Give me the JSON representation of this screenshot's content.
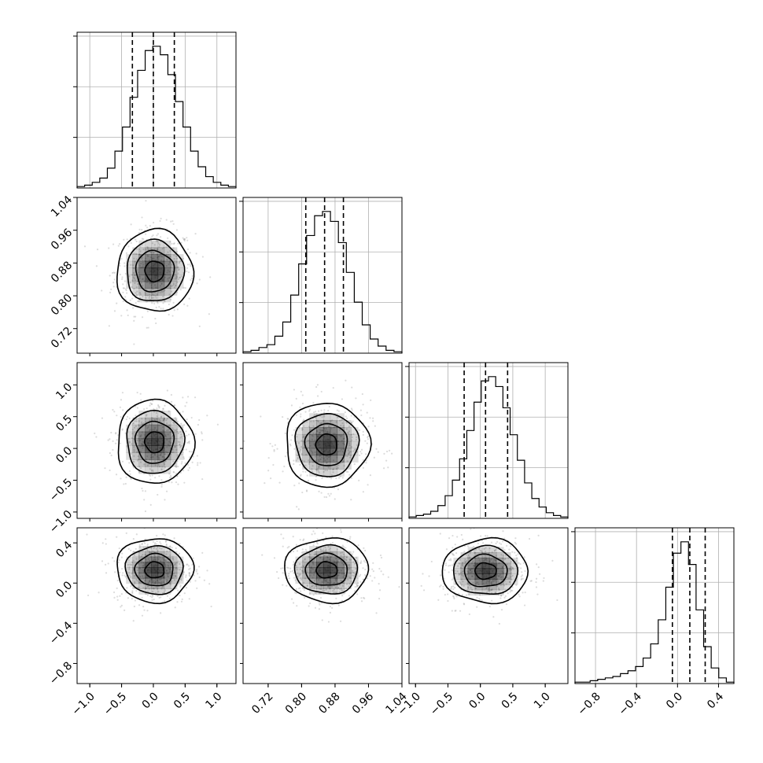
{
  "chart_data": {
    "type": "corner",
    "grid": true,
    "colors": {
      "line": "#000000",
      "grid": "#b0b0b0",
      "scatter": "#9a9a9a",
      "density": "#000000"
    },
    "params": [
      {
        "range": [
          -1.2,
          1.3
        ],
        "ticks": [
          -1.0,
          -0.5,
          0.0,
          0.5,
          1.0
        ],
        "tick_labels": [
          "−1.0",
          "−0.5",
          "0.0",
          "0.5",
          "1.0"
        ],
        "mean": 0.0,
        "sd": 0.3,
        "quantiles": [
          -0.33,
          0.0,
          0.33
        ]
      },
      {
        "range": [
          0.66,
          1.04
        ],
        "ticks": [
          0.72,
          0.8,
          0.88,
          0.96,
          1.04
        ],
        "tick_labels": [
          "0.72",
          "0.80",
          "0.88",
          "0.96",
          "1.04"
        ],
        "mean": 0.86,
        "sd": 0.05,
        "quantiles": [
          0.81,
          0.855,
          0.9
        ]
      },
      {
        "range": [
          -1.1,
          1.35
        ],
        "ticks": [
          -1.0,
          -0.5,
          0.0,
          0.5,
          1.0
        ],
        "tick_labels": [
          "−1.0",
          "−0.5",
          "0.0",
          "0.5",
          "1.0"
        ],
        "mean": 0.08,
        "sd": 0.33,
        "quantiles": [
          -0.25,
          0.08,
          0.42
        ]
      },
      {
        "range": [
          -1.0,
          0.55
        ],
        "ticks": [
          -0.8,
          -0.4,
          0.0,
          0.4
        ],
        "tick_labels": [
          "−0.8",
          "−0.4",
          "0.0",
          "0.4"
        ],
        "mean": 0.12,
        "sd": 0.16,
        "quantiles": [
          -0.05,
          0.12,
          0.27
        ]
      }
    ],
    "histograms": [
      {
        "param": 0,
        "counts": [
          1,
          2,
          4,
          7,
          14,
          26,
          43,
          64,
          83,
          97,
          100,
          94,
          80,
          61,
          43,
          26,
          15,
          8,
          4,
          2,
          1
        ]
      },
      {
        "param": 1,
        "counts": [
          1,
          2,
          4,
          6,
          12,
          22,
          41,
          63,
          83,
          97,
          100,
          93,
          78,
          57,
          36,
          20,
          10,
          5,
          2,
          1
        ]
      },
      {
        "param": 2,
        "counts": [
          1,
          2,
          3,
          5,
          9,
          16,
          27,
          42,
          62,
          82,
          97,
          100,
          93,
          78,
          59,
          41,
          25,
          14,
          8,
          4,
          2,
          1
        ]
      },
      {
        "param": 3,
        "counts": [
          1,
          1,
          2,
          3,
          4,
          5,
          7,
          9,
          12,
          18,
          28,
          45,
          68,
          92,
          100,
          84,
          52,
          26,
          11,
          4,
          1
        ]
      }
    ],
    "pairs": [
      {
        "x_param": 0,
        "y_param": 1,
        "center": [
          0.02,
          0.86
        ]
      },
      {
        "x_param": 0,
        "y_param": 2,
        "center": [
          0.02,
          0.1
        ]
      },
      {
        "x_param": 1,
        "y_param": 2,
        "center": [
          0.86,
          0.06
        ]
      },
      {
        "x_param": 0,
        "y_param": 3,
        "center": [
          0.02,
          0.13
        ]
      },
      {
        "x_param": 1,
        "y_param": 3,
        "center": [
          0.86,
          0.13
        ]
      },
      {
        "x_param": 2,
        "y_param": 3,
        "center": [
          0.08,
          0.12
        ]
      }
    ],
    "contour_levels_sigma": [
      0.5,
      1.0,
      1.5,
      2.0
    ]
  }
}
